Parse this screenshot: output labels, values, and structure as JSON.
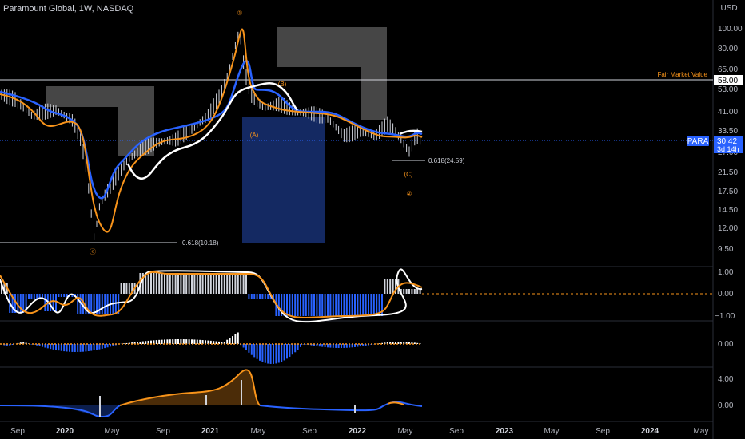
{
  "header": {
    "title": "Paramount Global, 1W, NASDAQ",
    "currency": "USD"
  },
  "price_axis": [
    "100.00",
    "80.00",
    "65.00",
    "53.00",
    "41.00",
    "33.50",
    "27.00",
    "21.50",
    "17.50",
    "14.50",
    "12.00",
    "9.50"
  ],
  "indicator1_axis": [
    "1.00",
    "0.00",
    "−1.00"
  ],
  "indicator2_axis": [
    "0.00"
  ],
  "indicator3_axis": [
    "4.00",
    "0.00"
  ],
  "time_axis": [
    {
      "label": "Sep",
      "bold": false
    },
    {
      "label": "2020",
      "bold": true
    },
    {
      "label": "May",
      "bold": false
    },
    {
      "label": "Sep",
      "bold": false
    },
    {
      "label": "2021",
      "bold": true
    },
    {
      "label": "May",
      "bold": false
    },
    {
      "label": "Sep",
      "bold": false
    },
    {
      "label": "2022",
      "bold": true
    },
    {
      "label": "May",
      "bold": false
    },
    {
      "label": "Sep",
      "bold": false
    },
    {
      "label": "2023",
      "bold": true
    },
    {
      "label": "May",
      "bold": false
    },
    {
      "label": "Sep",
      "bold": false
    },
    {
      "label": "2024",
      "bold": true
    },
    {
      "label": "May",
      "bold": false
    }
  ],
  "annotations": {
    "fair_value_label": "Fair Market Value",
    "fair_value_price": "58.00",
    "fib_low": "0.618(10.18)",
    "fib_high": "0.618(24.59)",
    "wave_a": "(A)",
    "wave_b": "(B)",
    "wave_c": "(C)",
    "wave_1": "①",
    "wave_2": "②",
    "wave_c_circle": "ⓒ"
  },
  "ticker_badge": {
    "symbol": "PARA",
    "price": "30.42",
    "countdown": "3d 14h"
  },
  "colors": {
    "background": "#000000",
    "accent_blue": "#2962ff",
    "orange": "#f7931a",
    "white": "#ffffff",
    "grid": "#1e222d"
  }
}
